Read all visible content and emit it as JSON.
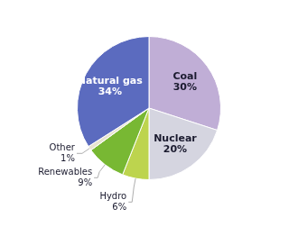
{
  "chart_data": {
    "type": "pie",
    "categories": [
      "Coal",
      "Nuclear",
      "Hydro",
      "Renewables",
      "Other",
      "Natural gas"
    ],
    "values": [
      30,
      20,
      6,
      9,
      1,
      34
    ],
    "value_labels": [
      "30%",
      "20%",
      "6%",
      "9%",
      "1%",
      "34%"
    ],
    "colors": [
      "#c0aed6",
      "#d5d5e0",
      "#bdd44e",
      "#78b833",
      "#e8e4d0",
      "#5b6bbf"
    ],
    "data_labels": true
  }
}
